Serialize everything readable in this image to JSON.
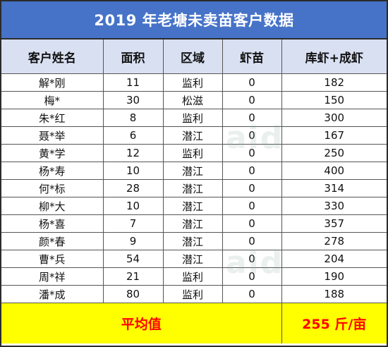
{
  "title": "2019 年老塘未卖苗客户数据",
  "headers": [
    "客户姓名",
    "面积",
    "区域",
    "虾苗",
    "库虾+成虾"
  ],
  "rows": [
    [
      "解*刚",
      "11",
      "监利",
      "0",
      "182"
    ],
    [
      "梅*",
      "30",
      "松滋",
      "0",
      "150"
    ],
    [
      "朱*红",
      "8",
      "监利",
      "0",
      "300"
    ],
    [
      "聂*举",
      "6",
      "潜江",
      "0",
      "167"
    ],
    [
      "黄*学",
      "12",
      "监利",
      "0",
      "250"
    ],
    [
      "杨*寿",
      "10",
      "潜江",
      "0",
      "400"
    ],
    [
      "何*标",
      "28",
      "潜江",
      "0",
      "314"
    ],
    [
      "柳*大",
      "10",
      "潜江",
      "0",
      "330"
    ],
    [
      "杨*喜",
      "7",
      "潜江",
      "0",
      "357"
    ],
    [
      "颜*春",
      "9",
      "潜江",
      "0",
      "278"
    ],
    [
      "曹*兵",
      "54",
      "潜江",
      "0",
      "204"
    ],
    [
      "周*祥",
      "21",
      "监利",
      "0",
      "190"
    ],
    [
      "潘*成",
      "80",
      "监利",
      "0",
      "188"
    ]
  ],
  "footer": {
    "label": "平均值",
    "value": "255 斤/亩"
  },
  "watermark": "aid",
  "colors": {
    "title_bg": "#4673c8",
    "header_bg": "#d9e0f2",
    "footer_bg": "#ffff00",
    "footer_text": "#ff0000"
  }
}
